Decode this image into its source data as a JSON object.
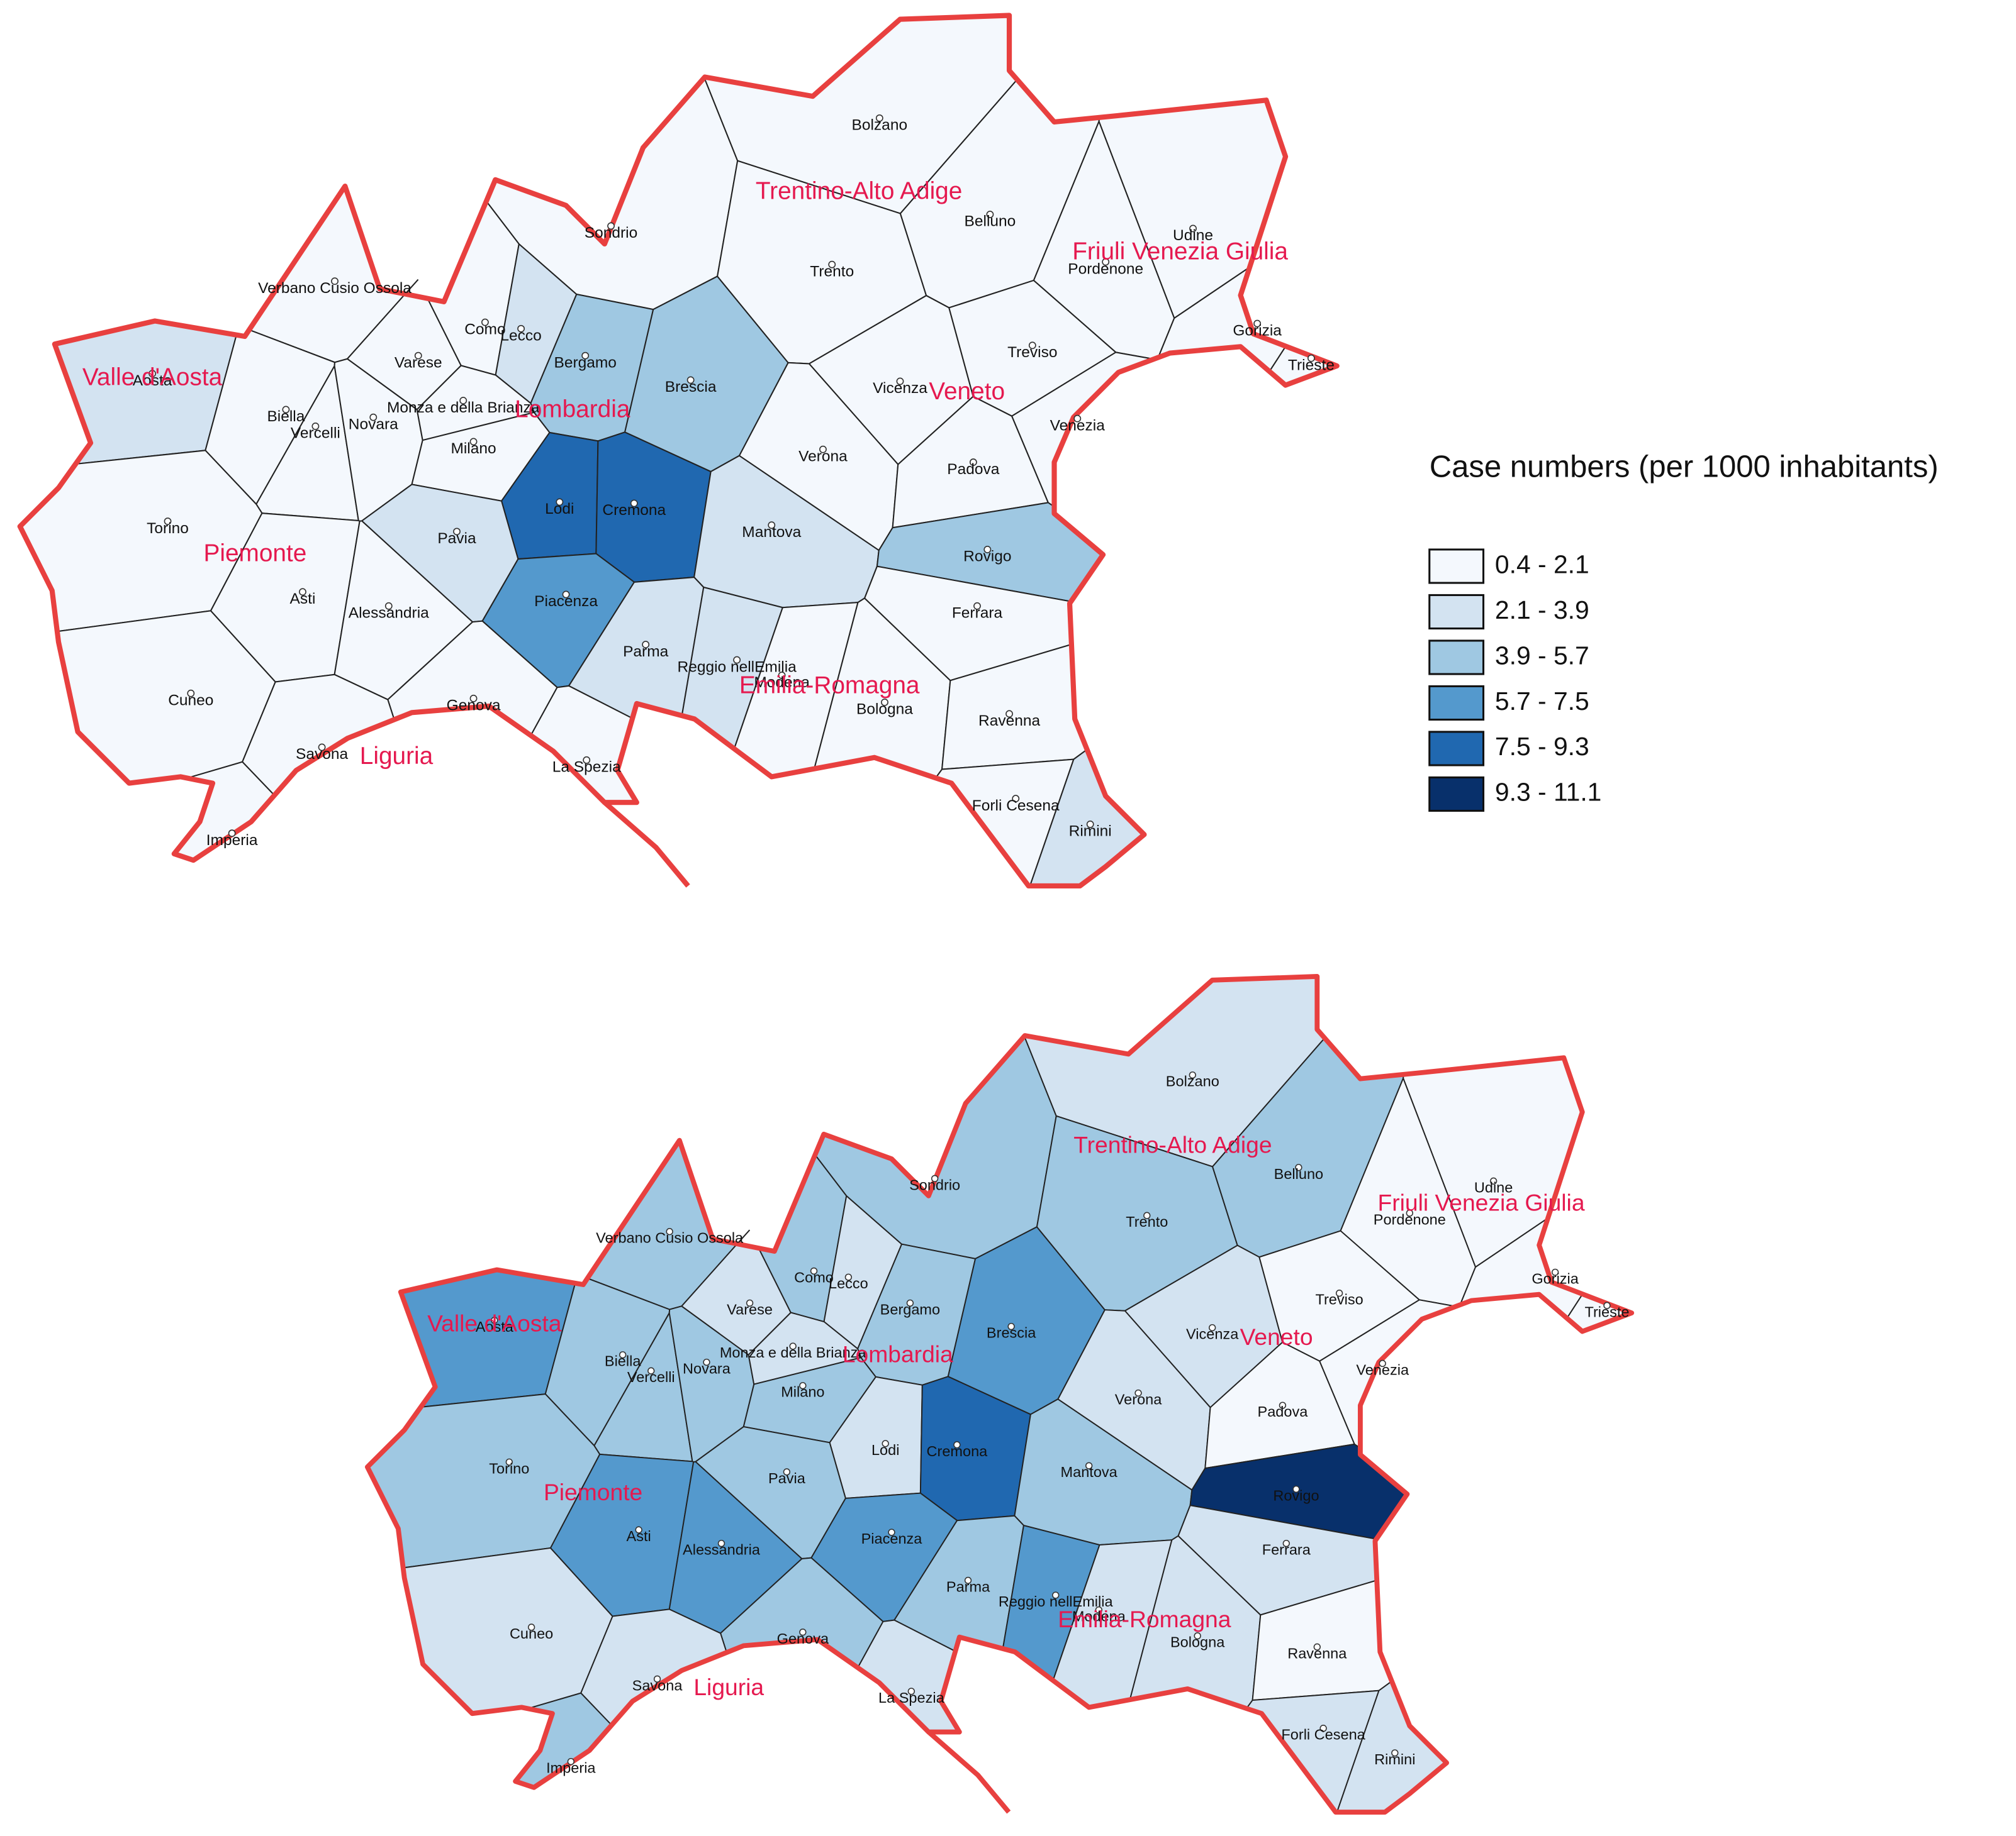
{
  "legend": {
    "title": "Case numbers (per 1000 inhabitants)",
    "items": [
      {
        "label": "0.4 - 2.1",
        "color": "#f4f8fd"
      },
      {
        "label": "2.1 - 3.9",
        "color": "#d3e3f1"
      },
      {
        "label": "3.9 - 5.7",
        "color": "#9fc8e2"
      },
      {
        "label": "5.7 - 7.5",
        "color": "#5499cd"
      },
      {
        "label": "7.5 - 9.3",
        "color": "#2068b0"
      },
      {
        "label": "9.3 - 11.1",
        "color": "#08306b"
      }
    ]
  },
  "regions": [
    "Valle d'Aosta",
    "Piemonte",
    "Lombardia",
    "Trentino-Alto Adige",
    "Veneto",
    "Friuli Venezia Giulia",
    "Emilia-Romagna",
    "Liguria"
  ],
  "provinces": [
    {
      "name": "Aosta",
      "classes": [
        1,
        3
      ]
    },
    {
      "name": "Verbano Cusio Ossola",
      "classes": [
        0,
        2
      ]
    },
    {
      "name": "Biella",
      "classes": [
        0,
        2
      ]
    },
    {
      "name": "Vercelli",
      "classes": [
        0,
        2
      ]
    },
    {
      "name": "Novara",
      "classes": [
        0,
        2
      ]
    },
    {
      "name": "Torino",
      "classes": [
        0,
        2
      ]
    },
    {
      "name": "Cuneo",
      "classes": [
        0,
        1
      ]
    },
    {
      "name": "Asti",
      "classes": [
        0,
        3
      ]
    },
    {
      "name": "Alessandria",
      "classes": [
        0,
        3
      ]
    },
    {
      "name": "Varese",
      "classes": [
        0,
        1
      ]
    },
    {
      "name": "Como",
      "classes": [
        0,
        2
      ]
    },
    {
      "name": "Lecco",
      "classes": [
        1,
        1
      ]
    },
    {
      "name": "Sondrio",
      "classes": [
        0,
        2
      ]
    },
    {
      "name": "Bergamo",
      "classes": [
        2,
        2
      ]
    },
    {
      "name": "Brescia",
      "classes": [
        2,
        3
      ]
    },
    {
      "name": "Monza e della Brianza",
      "classes": [
        0,
        1
      ]
    },
    {
      "name": "Milano",
      "classes": [
        0,
        2
      ]
    },
    {
      "name": "Lodi",
      "classes": [
        4,
        1
      ]
    },
    {
      "name": "Cremona",
      "classes": [
        4,
        4
      ]
    },
    {
      "name": "Mantova",
      "classes": [
        1,
        2
      ]
    },
    {
      "name": "Pavia",
      "classes": [
        1,
        2
      ]
    },
    {
      "name": "Bolzano",
      "classes": [
        0,
        1
      ]
    },
    {
      "name": "Trento",
      "classes": [
        0,
        2
      ]
    },
    {
      "name": "Belluno",
      "classes": [
        0,
        2
      ]
    },
    {
      "name": "Udine",
      "classes": [
        0,
        0
      ]
    },
    {
      "name": "Pordenone",
      "classes": [
        0,
        0
      ]
    },
    {
      "name": "Gorizia",
      "classes": [
        0,
        0
      ]
    },
    {
      "name": "Trieste",
      "classes": [
        0,
        0
      ]
    },
    {
      "name": "Vicenza",
      "classes": [
        0,
        1
      ]
    },
    {
      "name": "Treviso",
      "classes": [
        0,
        0
      ]
    },
    {
      "name": "Verona",
      "classes": [
        0,
        1
      ]
    },
    {
      "name": "Padova",
      "classes": [
        0,
        0
      ]
    },
    {
      "name": "Venezia",
      "classes": [
        0,
        0
      ]
    },
    {
      "name": "Rovigo",
      "classes": [
        2,
        5
      ]
    },
    {
      "name": "Piacenza",
      "classes": [
        3,
        3
      ]
    },
    {
      "name": "Parma",
      "classes": [
        1,
        2
      ]
    },
    {
      "name": "Reggio nellEmilia",
      "classes": [
        1,
        3
      ]
    },
    {
      "name": "Modena",
      "classes": [
        0,
        1
      ]
    },
    {
      "name": "Bologna",
      "classes": [
        0,
        1
      ]
    },
    {
      "name": "Ferrara",
      "classes": [
        0,
        1
      ]
    },
    {
      "name": "Ravenna",
      "classes": [
        0,
        0
      ]
    },
    {
      "name": "Forli Cesena",
      "classes": [
        0,
        1
      ]
    },
    {
      "name": "Rimini",
      "classes": [
        1,
        1
      ]
    },
    {
      "name": "Genova",
      "classes": [
        0,
        2
      ]
    },
    {
      "name": "Savona",
      "classes": [
        0,
        1
      ]
    },
    {
      "name": "Imperia",
      "classes": [
        0,
        2
      ]
    },
    {
      "name": "La Spezia",
      "classes": [
        0,
        1
      ]
    }
  ]
}
